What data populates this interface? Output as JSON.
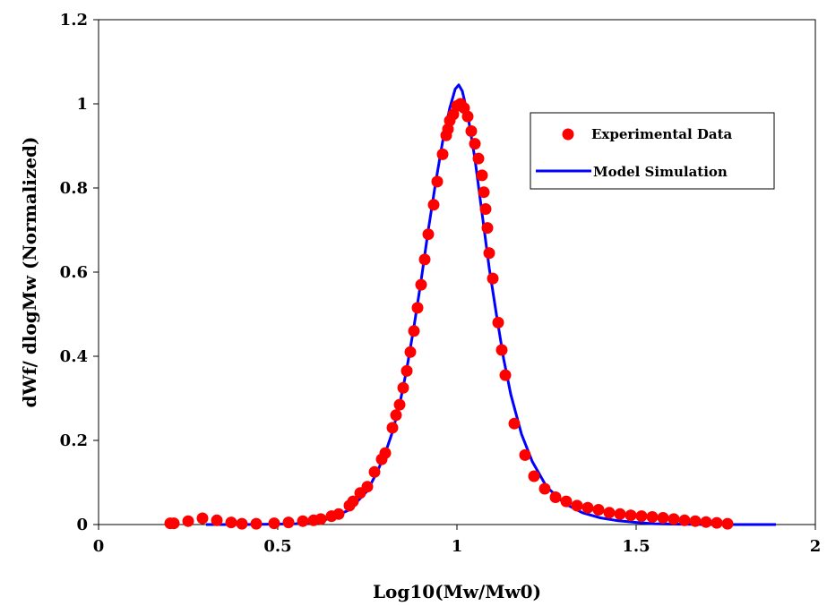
{
  "chart_data": {
    "type": "scatter",
    "xlabel": "Log10(Mw/Mw0)",
    "ylabel": "dWf/ dlogMw (Normalized)",
    "xlim": [
      0,
      2
    ],
    "ylim": [
      0,
      1.2
    ],
    "x_ticks": [
      "0",
      "0.5",
      "1",
      "1.5",
      "2"
    ],
    "y_ticks": [
      "0",
      "0.2",
      "0.4",
      "0.6",
      "0.8",
      "1",
      "1.2"
    ],
    "grid": false,
    "legend_position": "upper-right",
    "series": [
      {
        "name": "Experimental Data",
        "kind": "scatter",
        "color": "#ff0000",
        "points": [
          [
            0.2,
            0.003
          ],
          [
            0.21,
            0.003
          ],
          [
            0.25,
            0.008
          ],
          [
            0.29,
            0.015
          ],
          [
            0.33,
            0.01
          ],
          [
            0.37,
            0.005
          ],
          [
            0.4,
            0.002
          ],
          [
            0.44,
            0.002
          ],
          [
            0.49,
            0.003
          ],
          [
            0.53,
            0.005
          ],
          [
            0.57,
            0.008
          ],
          [
            0.6,
            0.01
          ],
          [
            0.62,
            0.013
          ],
          [
            0.65,
            0.02
          ],
          [
            0.67,
            0.025
          ],
          [
            0.7,
            0.045
          ],
          [
            0.71,
            0.055
          ],
          [
            0.73,
            0.075
          ],
          [
            0.75,
            0.09
          ],
          [
            0.77,
            0.125
          ],
          [
            0.79,
            0.155
          ],
          [
            0.8,
            0.17
          ],
          [
            0.82,
            0.23
          ],
          [
            0.83,
            0.26
          ],
          [
            0.84,
            0.285
          ],
          [
            0.85,
            0.325
          ],
          [
            0.86,
            0.365
          ],
          [
            0.87,
            0.41
          ],
          [
            0.88,
            0.46
          ],
          [
            0.89,
            0.515
          ],
          [
            0.9,
            0.57
          ],
          [
            0.91,
            0.63
          ],
          [
            0.92,
            0.69
          ],
          [
            0.935,
            0.76
          ],
          [
            0.945,
            0.815
          ],
          [
            0.96,
            0.88
          ],
          [
            0.97,
            0.925
          ],
          [
            0.975,
            0.94
          ],
          [
            0.98,
            0.96
          ],
          [
            0.99,
            0.975
          ],
          [
            1.0,
            0.995
          ],
          [
            1.01,
            1.0
          ],
          [
            1.02,
            0.99
          ],
          [
            1.03,
            0.97
          ],
          [
            1.04,
            0.935
          ],
          [
            1.05,
            0.905
          ],
          [
            1.06,
            0.87
          ],
          [
            1.07,
            0.83
          ],
          [
            1.075,
            0.79
          ],
          [
            1.08,
            0.75
          ],
          [
            1.085,
            0.705
          ],
          [
            1.09,
            0.645
          ],
          [
            1.1,
            0.585
          ],
          [
            1.115,
            0.48
          ],
          [
            1.125,
            0.415
          ],
          [
            1.135,
            0.355
          ],
          [
            1.16,
            0.24
          ],
          [
            1.19,
            0.165
          ],
          [
            1.215,
            0.115
          ],
          [
            1.245,
            0.085
          ],
          [
            1.275,
            0.065
          ],
          [
            1.305,
            0.055
          ],
          [
            1.335,
            0.045
          ],
          [
            1.365,
            0.04
          ],
          [
            1.395,
            0.035
          ],
          [
            1.425,
            0.028
          ],
          [
            1.455,
            0.025
          ],
          [
            1.485,
            0.022
          ],
          [
            1.515,
            0.02
          ],
          [
            1.545,
            0.018
          ],
          [
            1.575,
            0.016
          ],
          [
            1.605,
            0.013
          ],
          [
            1.635,
            0.01
          ],
          [
            1.665,
            0.008
          ],
          [
            1.695,
            0.006
          ],
          [
            1.725,
            0.004
          ],
          [
            1.755,
            0.002
          ]
        ]
      },
      {
        "name": "Model Simulation",
        "kind": "line",
        "color": "#0000ff",
        "points": [
          [
            0.3,
            0.0
          ],
          [
            0.4,
            0.0
          ],
          [
            0.5,
            0.001
          ],
          [
            0.55,
            0.002
          ],
          [
            0.6,
            0.006
          ],
          [
            0.65,
            0.015
          ],
          [
            0.7,
            0.035
          ],
          [
            0.75,
            0.08
          ],
          [
            0.78,
            0.13
          ],
          [
            0.8,
            0.17
          ],
          [
            0.82,
            0.22
          ],
          [
            0.84,
            0.285
          ],
          [
            0.86,
            0.37
          ],
          [
            0.88,
            0.47
          ],
          [
            0.9,
            0.58
          ],
          [
            0.92,
            0.7
          ],
          [
            0.94,
            0.81
          ],
          [
            0.96,
            0.91
          ],
          [
            0.98,
            0.99
          ],
          [
            0.995,
            1.035
          ],
          [
            1.005,
            1.045
          ],
          [
            1.015,
            1.03
          ],
          [
            1.03,
            0.975
          ],
          [
            1.05,
            0.87
          ],
          [
            1.07,
            0.74
          ],
          [
            1.09,
            0.61
          ],
          [
            1.11,
            0.5
          ],
          [
            1.13,
            0.395
          ],
          [
            1.15,
            0.31
          ],
          [
            1.18,
            0.215
          ],
          [
            1.21,
            0.15
          ],
          [
            1.25,
            0.09
          ],
          [
            1.3,
            0.05
          ],
          [
            1.35,
            0.028
          ],
          [
            1.4,
            0.016
          ],
          [
            1.45,
            0.009
          ],
          [
            1.5,
            0.005
          ],
          [
            1.55,
            0.002
          ],
          [
            1.6,
            0.001
          ],
          [
            1.7,
            0.0
          ],
          [
            1.8,
            0.0
          ],
          [
            1.89,
            0.0
          ]
        ]
      }
    ]
  }
}
